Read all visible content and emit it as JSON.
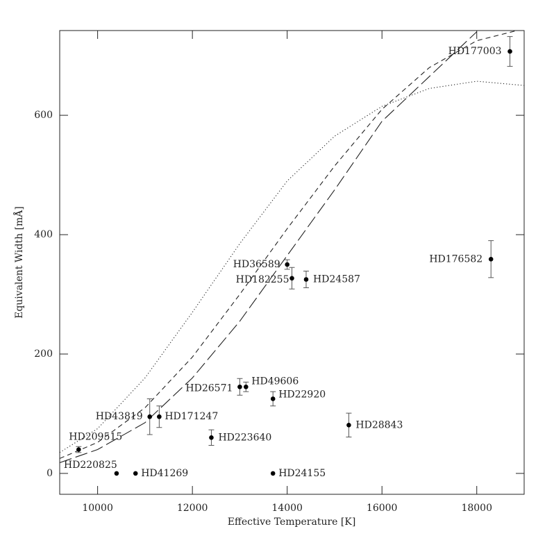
{
  "chart_data": {
    "type": "scatter",
    "xlabel": "Effective Temperature [K]",
    "ylabel": "Equivalent Width [mÅ]",
    "xlim": [
      9200,
      19000
    ],
    "ylim": [
      -35,
      742
    ],
    "xticks": [
      10000,
      12000,
      14000,
      16000,
      18000
    ],
    "yticks": [
      0,
      200,
      400,
      600
    ],
    "color": "#000000",
    "series": [
      {
        "labels": [
          "HD177003",
          "HD176582",
          "HD36589",
          "HD182255",
          "HD24587",
          "HD26571",
          "HD49606",
          "HD22920",
          "HD28843",
          "HD43819",
          "HD171247",
          "HD223640",
          "HD209515",
          "HD220825",
          "HD41269",
          "HD24155"
        ],
        "x": [
          18700,
          18300,
          14000,
          14100,
          14400,
          13000,
          13130,
          13700,
          15300,
          11100,
          11300,
          12400,
          9600,
          10400,
          10800,
          13700
        ],
        "values": [
          707,
          359,
          350,
          327,
          325,
          145,
          145,
          125,
          81,
          95,
          95,
          60,
          40,
          0,
          0,
          0
        ],
        "errors": [
          25,
          31,
          8,
          18,
          14,
          14,
          8,
          12,
          20,
          30,
          18,
          13,
          5,
          null,
          null,
          null
        ]
      }
    ],
    "curves": [
      {
        "style": "dotted",
        "x": [
          9200,
          10000,
          11000,
          12000,
          13000,
          14000,
          15000,
          16000,
          17000,
          18000,
          19000
        ],
        "values": [
          35,
          75,
          160,
          270,
          385,
          490,
          565,
          615,
          645,
          657,
          650
        ]
      },
      {
        "style": "short-dashed",
        "x": [
          9200,
          10000,
          11000,
          12000,
          13000,
          14000,
          15000,
          16000,
          17000,
          18000,
          19000
        ],
        "values": [
          25,
          52,
          110,
          195,
          300,
          410,
          515,
          610,
          680,
          725,
          745
        ]
      },
      {
        "style": "long-dashed",
        "x": [
          9200,
          10000,
          11000,
          12000,
          13000,
          14000,
          15000,
          16000,
          17000,
          18000
        ],
        "values": [
          18,
          40,
          85,
          160,
          255,
          365,
          475,
          590,
          665,
          740
        ]
      }
    ]
  }
}
